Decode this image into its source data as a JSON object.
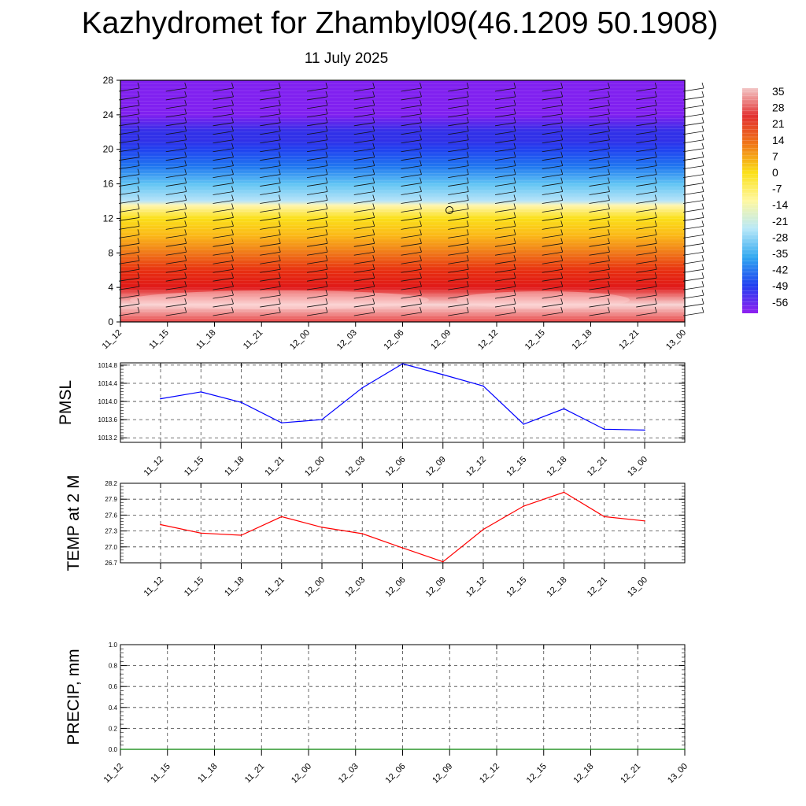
{
  "title": "Kazhydromet for Zhambyl09(46.1209 50.1908)",
  "subtitle": "11 July 2025",
  "chart_data": [
    {
      "type": "heatmap",
      "ylim": [
        0,
        28
      ],
      "yticks": [
        0,
        4,
        8,
        12,
        16,
        20,
        24,
        28
      ],
      "xticks": [
        "11_12",
        "11_15",
        "11_18",
        "11_21",
        "12_00",
        "12_03",
        "12_06",
        "12_09",
        "12_12",
        "12_15",
        "12_18",
        "12_21",
        "13_00"
      ],
      "colorbar": {
        "labels": [
          "35",
          "28",
          "21",
          "14",
          "7",
          "0",
          "-7",
          "-14",
          "-21",
          "-28",
          "-35",
          "-42",
          "-49",
          "-56"
        ],
        "colors": [
          "#f3c6c6",
          "#e23030",
          "#f07818",
          "#fbe018",
          "#fff8a0",
          "#b8e8f8",
          "#30a8f0",
          "#2040f0",
          "#9020f0"
        ]
      },
      "levels": [
        {
          "y": 0,
          "value": 30
        },
        {
          "y": 2,
          "value": 33
        },
        {
          "y": 4,
          "value": 27
        },
        {
          "y": 6,
          "value": 21
        },
        {
          "y": 8,
          "value": 16
        },
        {
          "y": 10,
          "value": 8
        },
        {
          "y": 12,
          "value": 2
        },
        {
          "y": 13.5,
          "value": -3
        },
        {
          "y": 14,
          "value": -12
        },
        {
          "y": 16,
          "value": -22
        },
        {
          "y": 18,
          "value": -33
        },
        {
          "y": 20,
          "value": -45
        },
        {
          "y": 21,
          "value": -52
        },
        {
          "y": 22,
          "value": -48
        },
        {
          "y": 24,
          "value": -57
        },
        {
          "y": 28,
          "value": -58
        }
      ]
    },
    {
      "type": "line",
      "ylabel": "PMSL",
      "x": [
        "11_12",
        "11_15",
        "11_18",
        "11_21",
        "12_00",
        "12_03",
        "12_06",
        "12_09",
        "12_12",
        "12_15",
        "12_18",
        "12_21",
        "13_00"
      ],
      "ylim": [
        1013.1,
        1014.85
      ],
      "yticks": [
        "1013.2",
        "1013.6",
        "1014.0",
        "1014.4",
        "1014.8"
      ],
      "series": [
        {
          "color": "#0000ff",
          "values": [
            1014.06,
            1014.21,
            1013.98,
            1013.53,
            1013.6,
            1014.3,
            1014.83,
            1014.59,
            1014.34,
            1013.5,
            1013.84,
            1013.39,
            1013.37
          ]
        }
      ]
    },
    {
      "type": "line",
      "ylabel": "TEMP at 2 M",
      "x": [
        "11_12",
        "11_15",
        "11_18",
        "11_21",
        "12_00",
        "12_03",
        "12_06",
        "12_09",
        "12_12",
        "12_15",
        "12_18",
        "12_21",
        "13_00"
      ],
      "ylim": [
        26.7,
        28.2
      ],
      "yticks": [
        "26.7",
        "27.0",
        "27.3",
        "27.6",
        "27.9",
        "28.2"
      ],
      "series": [
        {
          "color": "#ff0000",
          "values": [
            27.42,
            27.26,
            27.22,
            27.57,
            27.37,
            27.25,
            26.98,
            26.72,
            27.33,
            27.77,
            28.03,
            27.57,
            27.49
          ]
        }
      ]
    },
    {
      "type": "line",
      "ylabel": "PRECIP, mm",
      "x": [
        "11_12",
        "11_15",
        "11_18",
        "11_21",
        "12_00",
        "12_03",
        "12_06",
        "12_09",
        "12_12",
        "12_15",
        "12_18",
        "12_21",
        "13_00"
      ],
      "ylim": [
        0,
        1
      ],
      "yticks": [
        "0.0",
        "0.2",
        "0.4",
        "0.6",
        "0.8",
        "1.0"
      ],
      "series": [
        {
          "color": "#008000",
          "values": [
            0,
            0,
            0,
            0,
            0,
            0,
            0,
            0,
            0,
            0,
            0,
            0,
            0
          ]
        }
      ]
    }
  ]
}
